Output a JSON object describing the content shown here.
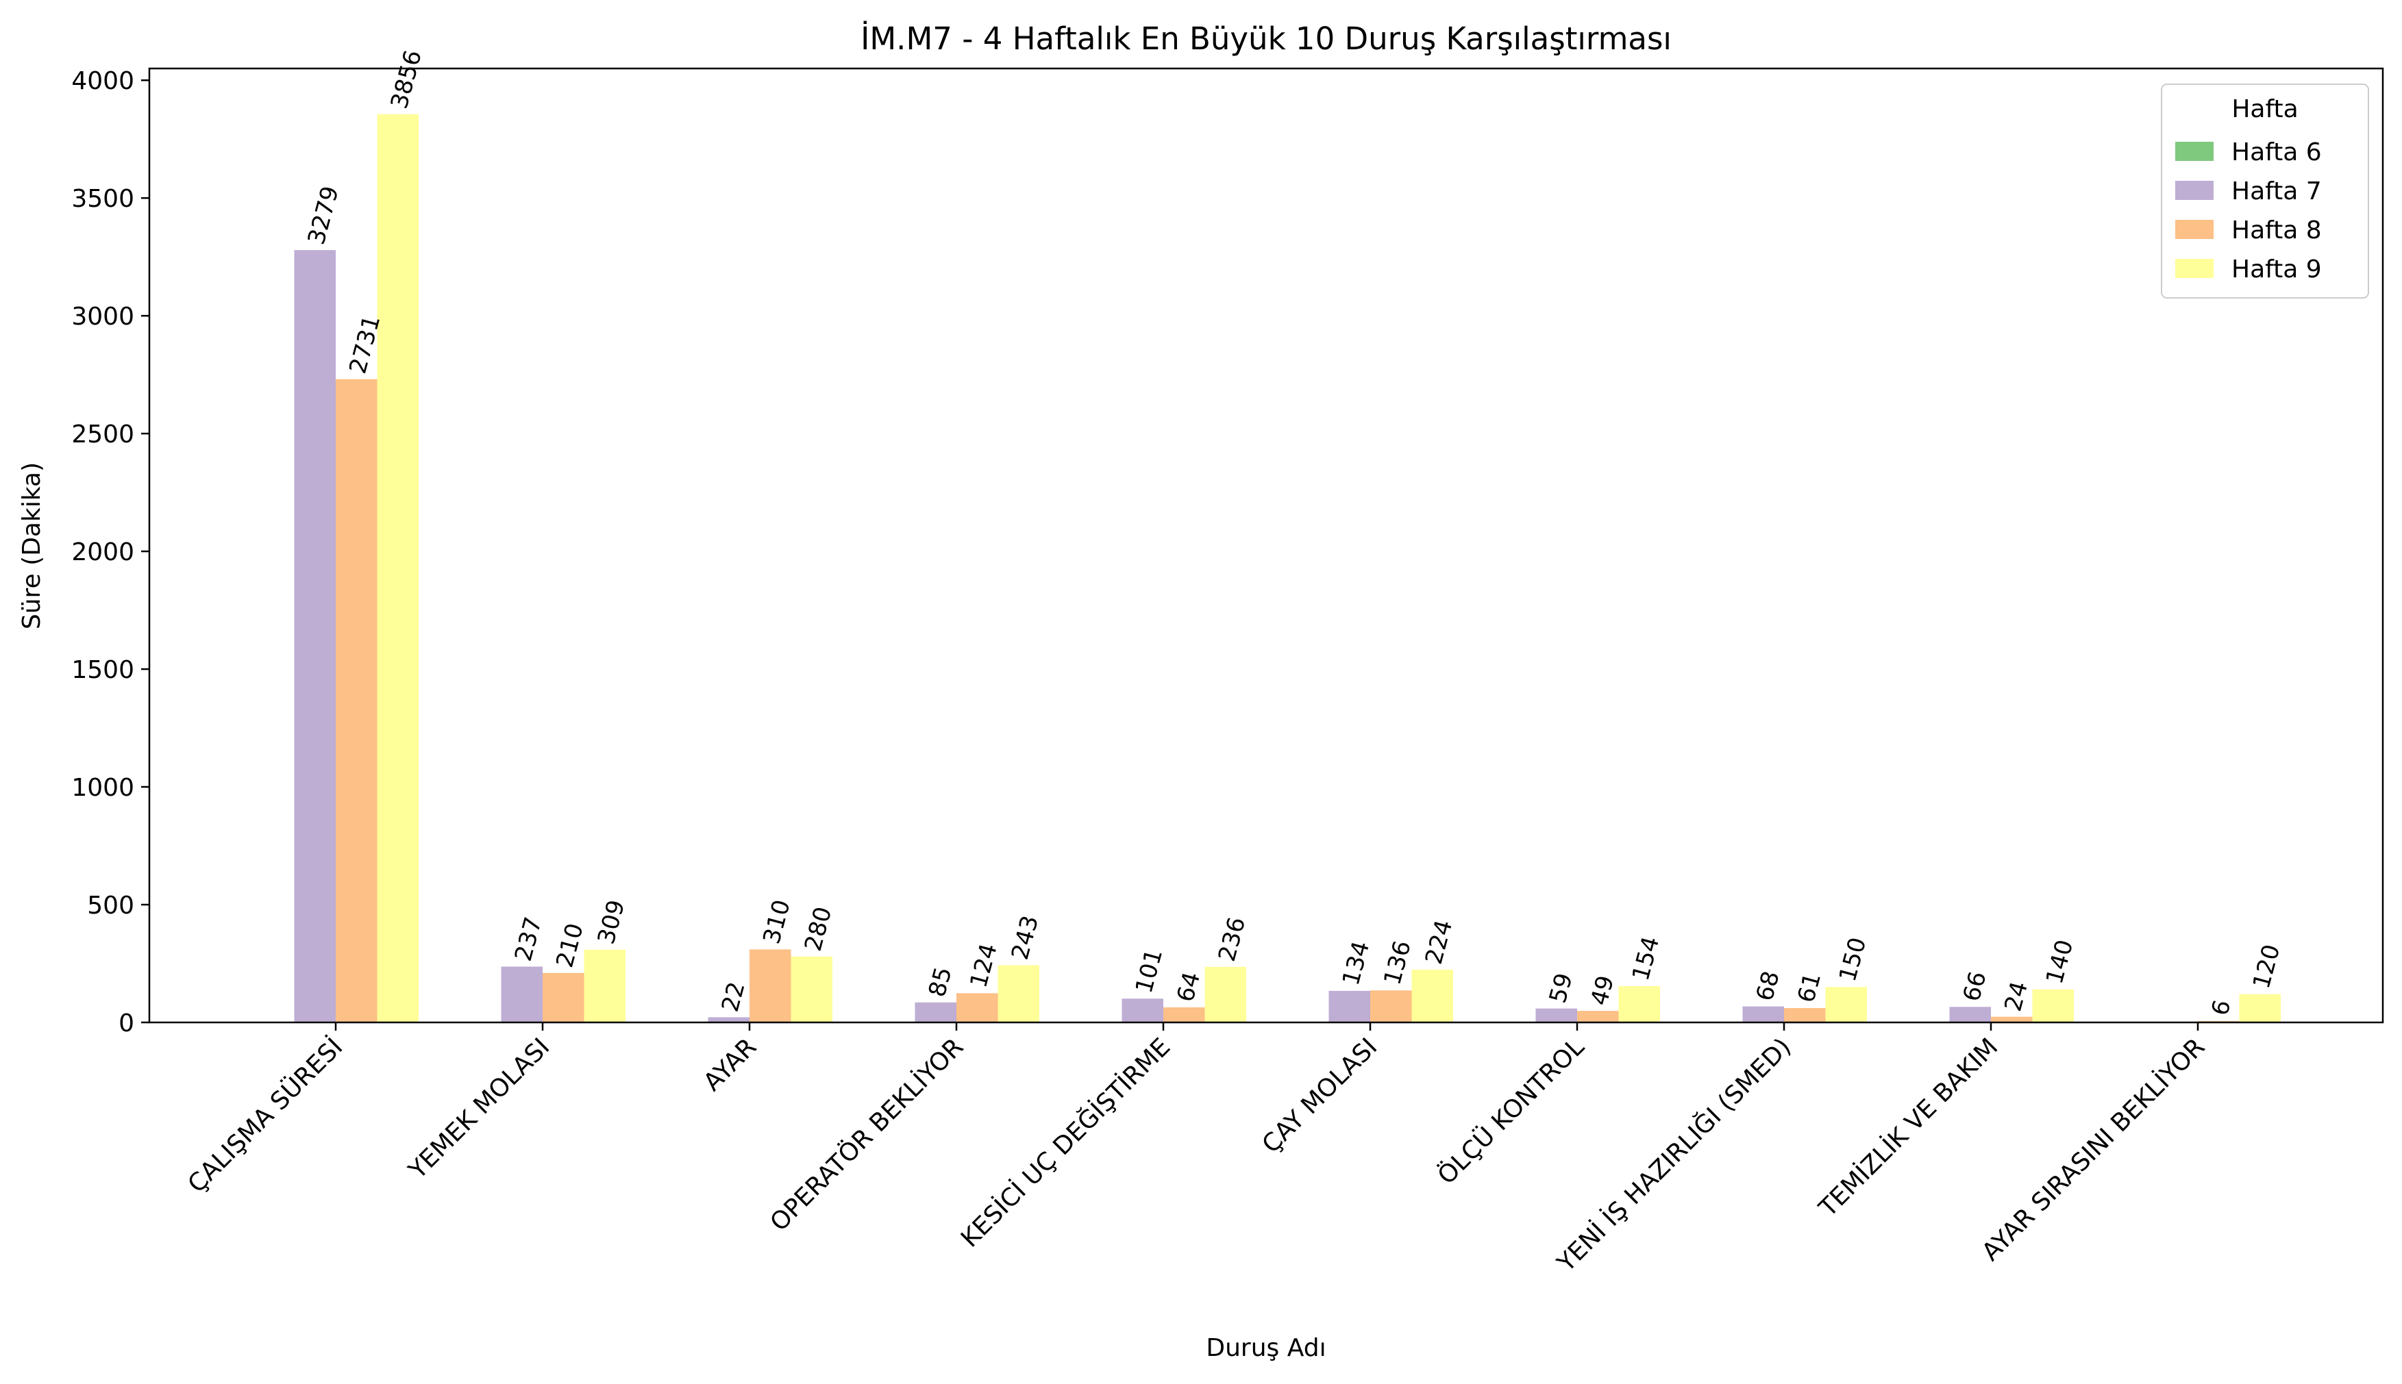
{
  "chart_data": {
    "type": "bar",
    "title": "İM.M7 - 4 Haftalık En Büyük 10 Duruş Karşılaştırması",
    "xlabel": "Duruş Adı",
    "ylabel": "Süre (Dakika)",
    "ylim": [
      0,
      4050
    ],
    "yticks": [
      0,
      500,
      1000,
      1500,
      2000,
      2500,
      3000,
      3500,
      4000
    ],
    "grid": false,
    "legend": {
      "title": "Hafta",
      "placement": "top-right"
    },
    "categories": [
      "ÇALIŞMA SÜRESİ",
      "YEMEK MOLASI",
      "AYAR",
      "OPERATÖR BEKLİYOR",
      "KESİCİ UÇ DEĞİŞTİRME",
      "ÇAY MOLASI",
      "ÖLÇÜ KONTROL",
      "YENİ İŞ HAZIRLIĞI (SMED)",
      "TEMİZLİK VE BAKIM",
      "AYAR SIRASINI BEKLİYOR"
    ],
    "series": [
      {
        "name": "Hafta 6",
        "color": "#7fc97f",
        "values": [
          null,
          null,
          null,
          null,
          null,
          null,
          null,
          null,
          null,
          null
        ]
      },
      {
        "name": "Hafta 7",
        "color": "#beaed4",
        "values": [
          3279,
          237,
          22,
          85,
          101,
          134,
          59,
          68,
          66,
          null
        ]
      },
      {
        "name": "Hafta 8",
        "color": "#fdc086",
        "values": [
          2731,
          210,
          310,
          124,
          64,
          136,
          49,
          61,
          24,
          6
        ]
      },
      {
        "name": "Hafta 9",
        "color": "#ffff99",
        "values": [
          3856,
          309,
          280,
          243,
          236,
          224,
          154,
          150,
          140,
          120
        ]
      }
    ]
  }
}
